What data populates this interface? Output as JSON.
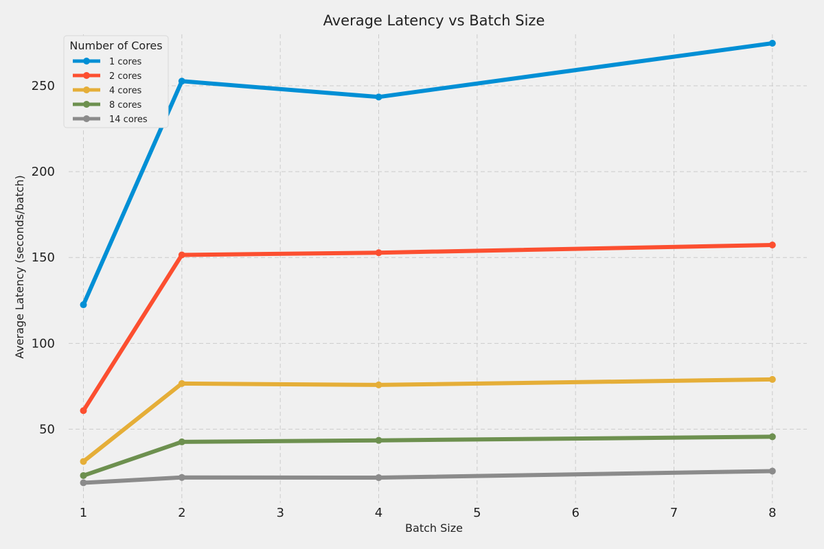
{
  "chart_data": {
    "type": "line",
    "title": "Average Latency vs Batch Size",
    "xlabel": "Batch Size",
    "ylabel": "Average Latency (seconds/batch)",
    "xlim": [
      0.85,
      8.35
    ],
    "ylim": [
      7,
      280
    ],
    "xticks": [
      1,
      2,
      3,
      4,
      5,
      6,
      7,
      8
    ],
    "xtick_labels": [
      "1",
      "2",
      "3",
      "4",
      "5",
      "6",
      "7",
      "8"
    ],
    "yticks": [
      50,
      100,
      150,
      200,
      250
    ],
    "ytick_labels": [
      "50",
      "100",
      "150",
      "200",
      "250"
    ],
    "grid": true,
    "legend_title": "Number of Cores",
    "legend_position": "top-left",
    "x": [
      1,
      2,
      4,
      8
    ],
    "series": [
      {
        "name": "1 cores",
        "color": "#008fd5",
        "values": [
          122.5,
          252.7,
          243.5,
          274.8
        ]
      },
      {
        "name": "2 cores",
        "color": "#fc4f30",
        "values": [
          60.8,
          151.5,
          152.8,
          157.3
        ]
      },
      {
        "name": "4 cores",
        "color": "#e5ae38",
        "values": [
          31.2,
          76.6,
          75.8,
          79.0
        ]
      },
      {
        "name": "8 cores",
        "color": "#6d904f",
        "values": [
          23.0,
          42.6,
          43.5,
          45.6
        ]
      },
      {
        "name": "14 cores",
        "color": "#8b8b8b",
        "values": [
          18.8,
          21.9,
          21.8,
          25.6
        ]
      }
    ]
  }
}
